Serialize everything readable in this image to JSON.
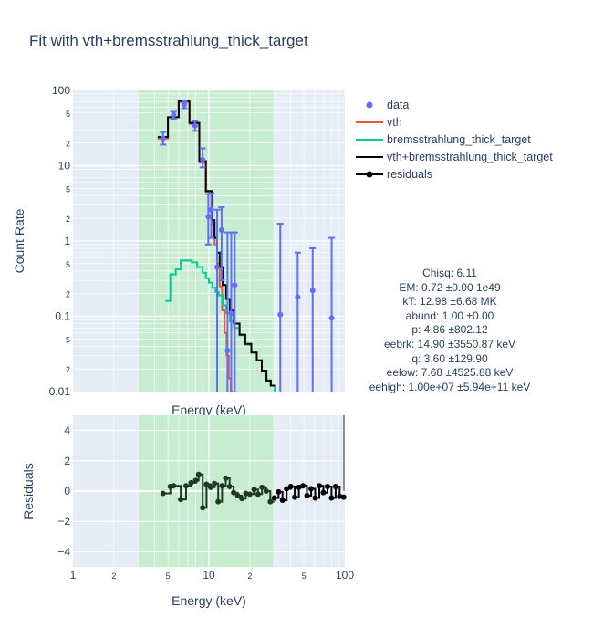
{
  "title": "Fit with vth+bremsstrahlung_thick_target",
  "colors": {
    "data": "#636efa",
    "vth": "#ef553b",
    "bremsstrahlung": "#00cc96",
    "total": "#000000",
    "residuals": "#000000",
    "plot_bg": "#e5ecf6",
    "fit_range": "#c8ecd0",
    "grid": "#ffffff"
  },
  "stats": [
    "Chisq: 6.11",
    "EM: 0.72 ±0.00 1e49",
    "kT: 12.98 ±6.68 MK",
    "abund: 1.00 ±0.00",
    "p: 4.86 ±802.12",
    "eebrk: 14.90 ±3550.87 keV",
    "q: 3.60 ±129.90",
    "eelow: 7.68 ±4525.88 keV",
    "eehigh: 1.00e+07 ±5.94e+11 keV"
  ],
  "chart_data": [
    {
      "type": "scatter",
      "panel": "spectrum",
      "xlabel": "Energy (keV)",
      "ylabel": "Count Rate",
      "xscale": "log",
      "yscale": "log",
      "xlim": [
        1,
        100
      ],
      "ylim": [
        0.01,
        100
      ],
      "fit_range": [
        3,
        30
      ],
      "x_tick_labels": [],
      "y_tick_labels": [
        {
          "v": 100,
          "t": "100",
          "major": true
        },
        {
          "v": 50,
          "t": "5",
          "major": false
        },
        {
          "v": 20,
          "t": "2",
          "major": false
        },
        {
          "v": 10,
          "t": "10",
          "major": true
        },
        {
          "v": 5,
          "t": "5",
          "major": false
        },
        {
          "v": 2,
          "t": "2",
          "major": false
        },
        {
          "v": 1,
          "t": "1",
          "major": true
        },
        {
          "v": 0.5,
          "t": "5",
          "major": false
        },
        {
          "v": 0.2,
          "t": "2",
          "major": false
        },
        {
          "v": 0.1,
          "t": "0.1",
          "major": true
        },
        {
          "v": 0.05,
          "t": "5",
          "major": false
        },
        {
          "v": 0.02,
          "t": "2",
          "major": false
        },
        {
          "v": 0.01,
          "t": "0.01",
          "major": true
        }
      ],
      "series": [
        {
          "name": "data",
          "kind": "errorbar",
          "points": [
            {
              "x": 4.6,
              "y": 23,
              "lo": 19,
              "hi": 28
            },
            {
              "x": 5.5,
              "y": 47,
              "lo": 42,
              "hi": 52
            },
            {
              "x": 6.6,
              "y": 65,
              "lo": 58,
              "hi": 72
            },
            {
              "x": 7.9,
              "y": 34,
              "lo": 29,
              "hi": 39
            },
            {
              "x": 9.0,
              "y": 12,
              "lo": 9.5,
              "hi": 17
            },
            {
              "x": 9.9,
              "y": 2.1,
              "lo": 0.9,
              "hi": 4.2
            },
            {
              "x": 10.4,
              "y": 2.6,
              "lo": 1.1,
              "hi": 4.3
            },
            {
              "x": 11.5,
              "y": 0.45,
              "lo": 0.01,
              "hi": 2.6
            },
            {
              "x": 12.4,
              "y": 1.4,
              "lo": 0.3,
              "hi": 2.8
            },
            {
              "x": 13.7,
              "y": 0.035,
              "lo": 0.01,
              "hi": 1.3
            },
            {
              "x": 14.6,
              "y": 0.11,
              "lo": 0.01,
              "hi": 1.3
            },
            {
              "x": 15.5,
              "y": 0.26,
              "lo": 0.01,
              "hi": 1.3
            },
            {
              "x": 33.5,
              "y": 0.105,
              "lo": 0.01,
              "hi": 1.7
            },
            {
              "x": 45,
              "y": 0.18,
              "lo": 0.01,
              "hi": 0.7
            },
            {
              "x": 58,
              "y": 0.22,
              "lo": 0.01,
              "hi": 0.8
            },
            {
              "x": 80,
              "y": 0.095,
              "lo": 0.01,
              "hi": 1.1
            }
          ]
        },
        {
          "name": "vth",
          "kind": "step",
          "points": [
            {
              "x": 4.2,
              "y": 23
            },
            {
              "x": 5.0,
              "y": 44
            },
            {
              "x": 6.0,
              "y": 70
            },
            {
              "x": 7.2,
              "y": 36
            },
            {
              "x": 8.5,
              "y": 11
            },
            {
              "x": 9.5,
              "y": 4.5
            },
            {
              "x": 10.5,
              "y": 1.7
            },
            {
              "x": 11.0,
              "y": 0.9
            },
            {
              "x": 11.5,
              "y": 0.5
            },
            {
              "x": 12.0,
              "y": 0.25
            },
            {
              "x": 12.5,
              "y": 0.12
            },
            {
              "x": 13.0,
              "y": 0.06
            },
            {
              "x": 13.5,
              "y": 0.03
            },
            {
              "x": 14.0,
              "y": 0.015
            },
            {
              "x": 14.5,
              "y": 0.01
            }
          ],
          "end_x": 15.0
        },
        {
          "name": "bremsstrahlung_thick_target",
          "kind": "step",
          "points": [
            {
              "x": 4.8,
              "y": 0.16
            },
            {
              "x": 5.2,
              "y": 0.36
            },
            {
              "x": 5.7,
              "y": 0.42
            },
            {
              "x": 6.2,
              "y": 0.55
            },
            {
              "x": 7.5,
              "y": 0.52
            },
            {
              "x": 8.2,
              "y": 0.45
            },
            {
              "x": 9.0,
              "y": 0.38
            },
            {
              "x": 9.5,
              "y": 0.32
            },
            {
              "x": 10.0,
              "y": 0.28
            },
            {
              "x": 10.6,
              "y": 0.24
            },
            {
              "x": 11.2,
              "y": 0.21
            },
            {
              "x": 11.8,
              "y": 0.19
            },
            {
              "x": 12.6,
              "y": 0.14
            },
            {
              "x": 13.4,
              "y": 0.11
            },
            {
              "x": 14.3,
              "y": 0.085
            },
            {
              "x": 15.3,
              "y": 0.07
            },
            {
              "x": 16.8,
              "y": 0.056
            },
            {
              "x": 18.5,
              "y": 0.042
            },
            {
              "x": 20.5,
              "y": 0.033
            },
            {
              "x": 22.5,
              "y": 0.026
            },
            {
              "x": 24.5,
              "y": 0.019
            },
            {
              "x": 26.5,
              "y": 0.014
            },
            {
              "x": 28.5,
              "y": 0.012
            },
            {
              "x": 30.5,
              "y": 0.01
            }
          ],
          "end_x": 30.5
        },
        {
          "name": "vth+bremsstrahlung_thick_target",
          "kind": "step",
          "points": [
            {
              "x": 4.2,
              "y": 24
            },
            {
              "x": 5.0,
              "y": 44
            },
            {
              "x": 6.0,
              "y": 72
            },
            {
              "x": 7.2,
              "y": 37
            },
            {
              "x": 8.5,
              "y": 11.5
            },
            {
              "x": 9.5,
              "y": 4.6
            },
            {
              "x": 10.5,
              "y": 1.9
            },
            {
              "x": 11.0,
              "y": 1.1
            },
            {
              "x": 11.5,
              "y": 0.7
            },
            {
              "x": 12.0,
              "y": 0.45
            },
            {
              "x": 12.6,
              "y": 0.26
            },
            {
              "x": 13.4,
              "y": 0.17
            },
            {
              "x": 14.3,
              "y": 0.12
            },
            {
              "x": 15.3,
              "y": 0.08
            },
            {
              "x": 16.8,
              "y": 0.057
            },
            {
              "x": 18.5,
              "y": 0.043
            },
            {
              "x": 20.5,
              "y": 0.033
            },
            {
              "x": 22.5,
              "y": 0.026
            },
            {
              "x": 24.5,
              "y": 0.019
            },
            {
              "x": 26.5,
              "y": 0.014
            },
            {
              "x": 28.5,
              "y": 0.012
            }
          ],
          "end_x": 30.5
        }
      ]
    },
    {
      "type": "line",
      "panel": "residuals",
      "xlabel": "Energy (keV)",
      "ylabel": "Residuals",
      "xscale": "log",
      "xlim": [
        1,
        100
      ],
      "ylim": [
        -5,
        5
      ],
      "fit_range": [
        3,
        30
      ],
      "x_tick_labels": [
        {
          "v": 1,
          "t": "1",
          "major": true
        },
        {
          "v": 2,
          "t": "2",
          "major": false
        },
        {
          "v": 5,
          "t": "5",
          "major": false
        },
        {
          "v": 10,
          "t": "10",
          "major": true
        },
        {
          "v": 20,
          "t": "2",
          "major": false
        },
        {
          "v": 50,
          "t": "5",
          "major": false
        },
        {
          "v": 100,
          "t": "100",
          "major": true
        }
      ],
      "y_tick_labels": [
        {
          "v": 4,
          "t": "4"
        },
        {
          "v": 2,
          "t": "2"
        },
        {
          "v": 0,
          "t": "0"
        },
        {
          "v": -2,
          "t": "−2"
        },
        {
          "v": -4,
          "t": "−4"
        }
      ],
      "series": [
        {
          "name": "residuals",
          "kind": "step-markers",
          "points": [
            {
              "x": 4.6,
              "y": -0.15
            },
            {
              "x": 5.2,
              "y": 0.3
            },
            {
              "x": 5.5,
              "y": 0.35
            },
            {
              "x": 6.2,
              "y": -0.55
            },
            {
              "x": 6.8,
              "y": 0.35
            },
            {
              "x": 7.4,
              "y": 0.55
            },
            {
              "x": 8.0,
              "y": 0.7
            },
            {
              "x": 8.4,
              "y": 1.1
            },
            {
              "x": 9.0,
              "y": -1.1
            },
            {
              "x": 9.6,
              "y": 0.45
            },
            {
              "x": 10.3,
              "y": 0.25
            },
            {
              "x": 11.0,
              "y": 0.5
            },
            {
              "x": 11.7,
              "y": -0.7
            },
            {
              "x": 12.5,
              "y": 0.35
            },
            {
              "x": 13.3,
              "y": 0.85
            },
            {
              "x": 14.2,
              "y": 0.3
            },
            {
              "x": 15.2,
              "y": -0.1
            },
            {
              "x": 16.3,
              "y": -0.3
            },
            {
              "x": 17.5,
              "y": -0.5
            },
            {
              "x": 18.7,
              "y": -0.15
            },
            {
              "x": 20.0,
              "y": -0.2
            },
            {
              "x": 21.5,
              "y": 0.1
            },
            {
              "x": 23.0,
              "y": -0.2
            },
            {
              "x": 24.6,
              "y": 0.25
            },
            {
              "x": 26.4,
              "y": 0.0
            },
            {
              "x": 28.3,
              "y": -0.7
            },
            {
              "x": 30.3,
              "y": -0.45
            },
            {
              "x": 32.5,
              "y": -0.05
            },
            {
              "x": 34.8,
              "y": -0.6
            },
            {
              "x": 37.3,
              "y": 0.15
            },
            {
              "x": 40.0,
              "y": 0.3
            },
            {
              "x": 42.8,
              "y": -0.4
            },
            {
              "x": 45.9,
              "y": 0.25
            },
            {
              "x": 49.2,
              "y": 0.35
            },
            {
              "x": 52.7,
              "y": -0.3
            },
            {
              "x": 56.5,
              "y": 0.15
            },
            {
              "x": 60.5,
              "y": -0.45
            },
            {
              "x": 64.9,
              "y": 0.35
            },
            {
              "x": 69.5,
              "y": -0.1
            },
            {
              "x": 74.5,
              "y": 0.3
            },
            {
              "x": 79.8,
              "y": -0.45
            },
            {
              "x": 85.5,
              "y": 0.3
            },
            {
              "x": 91.6,
              "y": -0.35
            },
            {
              "x": 98.0,
              "y": -0.4
            }
          ]
        }
      ]
    }
  ]
}
